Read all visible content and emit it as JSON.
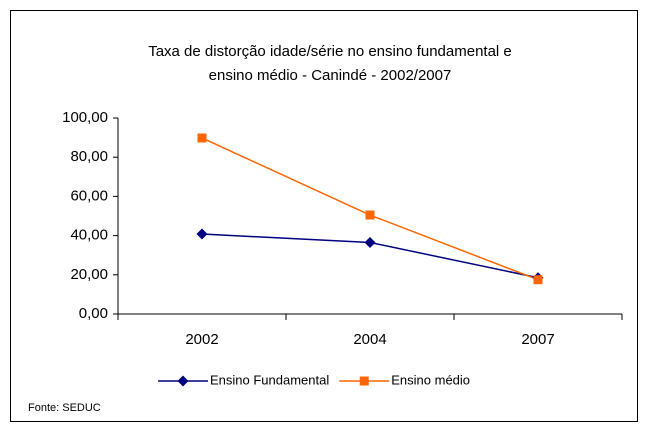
{
  "chart_data": {
    "type": "line",
    "title": [
      "Taxa de distorção idade/série no ensino fundamental e",
      "ensino médio - Canindé - 2002/2007"
    ],
    "categories": [
      "2002",
      "2004",
      "2007"
    ],
    "series": [
      {
        "name": "Ensino Fundamental",
        "color": "#000080",
        "marker": "diamond",
        "values": [
          40.8,
          36.5,
          18.5
        ]
      },
      {
        "name": "Ensino médio",
        "color": "#ff6600",
        "marker": "square",
        "values": [
          89.8,
          50.5,
          17.5
        ]
      }
    ],
    "ylim": [
      0,
      100
    ],
    "yticks": [
      {
        "value": 0,
        "label": "0,00"
      },
      {
        "value": 20,
        "label": "20,00"
      },
      {
        "value": 40,
        "label": "40,00"
      },
      {
        "value": 60,
        "label": "60,00"
      },
      {
        "value": 80,
        "label": "80,00"
      },
      {
        "value": 100,
        "label": "100,00"
      }
    ],
    "grid": false,
    "legend": "bottom",
    "source": "Fonte: SEDUC"
  }
}
